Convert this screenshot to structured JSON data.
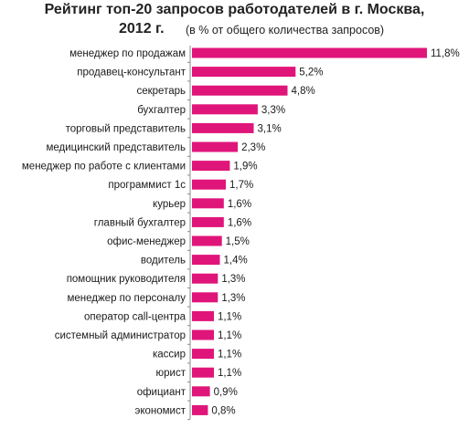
{
  "title": {
    "line1": "Рейтинг топ-20 запросов  работодателей  в г. Москва,",
    "line2": "2012 г.",
    "subtitle": "(в % от общего количества запросов)"
  },
  "colors": {
    "bar": "#e0157a",
    "axis": "#8c8c8c"
  },
  "chart_data": {
    "type": "bar",
    "orientation": "horizontal",
    "categories": [
      "менеджер по продажам",
      "продавец-консультант",
      "секретарь",
      "бухгалтер",
      "торговый представитель",
      "медицинский представитель",
      "менеджер по работе с клиентами",
      "программист 1с",
      "курьер",
      "главный бухгалтер",
      "офис-менеджер",
      "водитель",
      "помощник руководителя",
      "менеджер по персоналу",
      "оператор call-центра",
      "системный администратор",
      "кассир",
      "юрист",
      "официант",
      "экономист"
    ],
    "values": [
      11.8,
      5.2,
      4.8,
      3.3,
      3.1,
      2.3,
      1.9,
      1.7,
      1.6,
      1.6,
      1.5,
      1.4,
      1.3,
      1.3,
      1.1,
      1.1,
      1.1,
      1.1,
      0.9,
      0.8
    ],
    "value_labels": [
      "11,8%",
      "5,2%",
      "4,8%",
      "3,3%",
      "3,1%",
      "2,3%",
      "1,9%",
      "1,7%",
      "1,6%",
      "1,6%",
      "1,5%",
      "1,4%",
      "1,3%",
      "1,3%",
      "1,1%",
      "1,1%",
      "1,1%",
      "1,1%",
      "0,9%",
      "0,8%"
    ],
    "xlim": [
      0,
      11.8
    ],
    "grid": false,
    "legend": "none"
  }
}
